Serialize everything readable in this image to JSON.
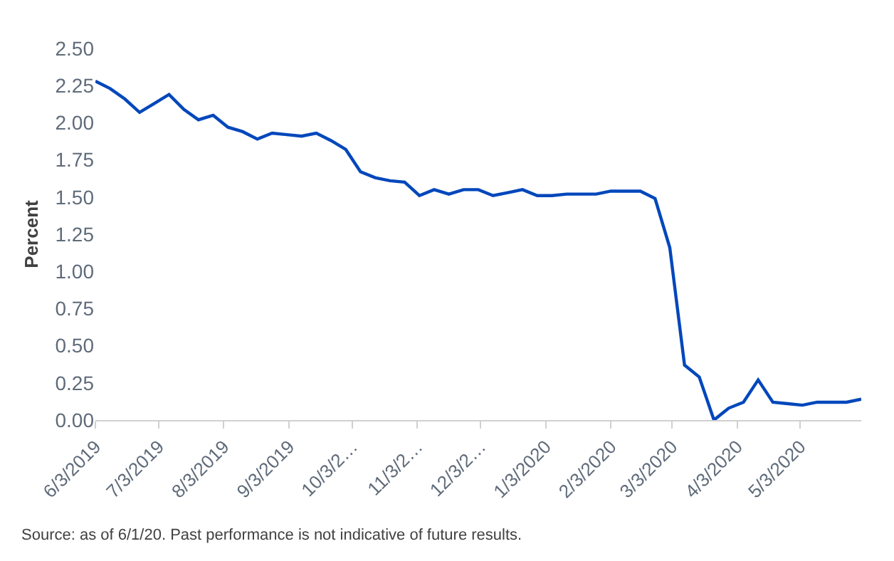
{
  "chart_data": {
    "type": "line",
    "ylabel": "Percent",
    "x": [
      "2019-06-03",
      "2019-06-10",
      "2019-06-17",
      "2019-06-24",
      "2019-07-01",
      "2019-07-08",
      "2019-07-15",
      "2019-07-22",
      "2019-07-29",
      "2019-08-05",
      "2019-08-12",
      "2019-08-19",
      "2019-08-26",
      "2019-09-02",
      "2019-09-09",
      "2019-09-16",
      "2019-09-23",
      "2019-09-30",
      "2019-10-07",
      "2019-10-14",
      "2019-10-21",
      "2019-10-28",
      "2019-11-04",
      "2019-11-11",
      "2019-11-18",
      "2019-11-25",
      "2019-12-02",
      "2019-12-09",
      "2019-12-16",
      "2019-12-23",
      "2019-12-30",
      "2020-01-06",
      "2020-01-13",
      "2020-01-20",
      "2020-01-27",
      "2020-02-03",
      "2020-02-10",
      "2020-02-17",
      "2020-02-24",
      "2020-03-02",
      "2020-03-09",
      "2020-03-16",
      "2020-03-23",
      "2020-03-30",
      "2020-04-06",
      "2020-04-13",
      "2020-04-20",
      "2020-04-27",
      "2020-05-04",
      "2020-05-11",
      "2020-05-18",
      "2020-05-25",
      "2020-06-01"
    ],
    "series": [
      {
        "color": "#0047bb",
        "values": [
          2.28,
          2.23,
          2.16,
          2.07,
          2.13,
          2.19,
          2.09,
          2.02,
          2.05,
          1.97,
          1.94,
          1.89,
          1.93,
          1.92,
          1.91,
          1.93,
          1.88,
          1.82,
          1.67,
          1.63,
          1.61,
          1.6,
          1.51,
          1.55,
          1.52,
          1.55,
          1.55,
          1.51,
          1.53,
          1.55,
          1.51,
          1.51,
          1.52,
          1.52,
          1.52,
          1.54,
          1.54,
          1.54,
          1.49,
          1.16,
          0.37,
          0.29,
          0.0,
          0.08,
          0.12,
          0.27,
          0.12,
          0.11,
          0.1,
          0.12,
          0.12,
          0.12,
          0.14
        ]
      }
    ],
    "xlim": [
      "2019-06-03",
      "2020-06-01"
    ],
    "xticks": [
      {
        "value": "2019-06-03",
        "label": "6/3/2019"
      },
      {
        "value": "2019-07-03",
        "label": "7/3/2019"
      },
      {
        "value": "2019-08-03",
        "label": "8/3/2019"
      },
      {
        "value": "2019-09-03",
        "label": "9/3/2019"
      },
      {
        "value": "2019-10-03",
        "label": "10/3/2…"
      },
      {
        "value": "2019-11-03",
        "label": "11/3/2…"
      },
      {
        "value": "2019-12-03",
        "label": "12/3/2…"
      },
      {
        "value": "2020-01-03",
        "label": "1/3/2020"
      },
      {
        "value": "2020-02-03",
        "label": "2/3/2020"
      },
      {
        "value": "2020-03-03",
        "label": "3/3/2020"
      },
      {
        "value": "2020-04-03",
        "label": "4/3/2020"
      },
      {
        "value": "2020-05-03",
        "label": "5/3/2020"
      }
    ],
    "ylim": [
      0,
      2.5
    ],
    "yticks": [
      {
        "value": 0,
        "label": "0.00"
      },
      {
        "value": 0.25,
        "label": "0.25"
      },
      {
        "value": 0.5,
        "label": "0.50"
      },
      {
        "value": 0.75,
        "label": "0.75"
      },
      {
        "value": 1,
        "label": "1.00"
      },
      {
        "value": 1.25,
        "label": "1.25"
      },
      {
        "value": 1.5,
        "label": "1.50"
      },
      {
        "value": 1.75,
        "label": "1.75"
      },
      {
        "value": 2,
        "label": "2.00"
      },
      {
        "value": 2.25,
        "label": "2.25"
      },
      {
        "value": 2.5,
        "label": "2.50"
      }
    ],
    "marker": "none",
    "line_style": "solid",
    "annotations": [
      "Source: as of 6/1/20. Past performance is not indicative of future results."
    ]
  }
}
